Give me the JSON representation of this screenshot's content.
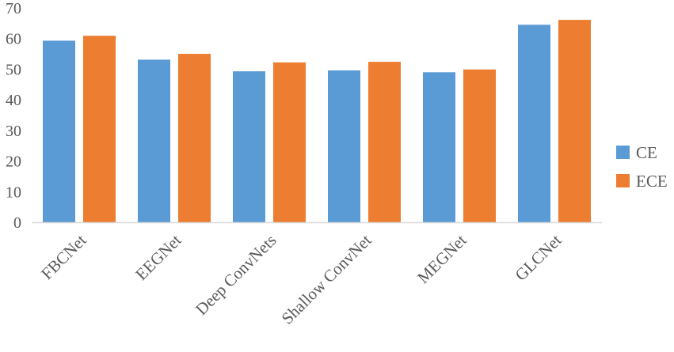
{
  "chart_data": {
    "type": "bar",
    "categories": [
      "FBCNet",
      "EEGNet",
      "Deep ConvNets",
      "Shallow ConvNet",
      "MEGNet",
      "GLCNet"
    ],
    "series": [
      {
        "name": "CE",
        "color": "#5B9BD5",
        "values": [
          59.3,
          53.1,
          49.3,
          49.6,
          49.0,
          64.5
        ]
      },
      {
        "name": "ECE",
        "color": "#ED7D31",
        "values": [
          60.9,
          55.0,
          52.2,
          52.4,
          49.9,
          66.1
        ]
      }
    ],
    "yticks": [
      "0",
      "10",
      "20",
      "30",
      "40",
      "50",
      "60",
      "70"
    ],
    "ylim": [
      0,
      70
    ],
    "grid": false,
    "legend": "right"
  }
}
